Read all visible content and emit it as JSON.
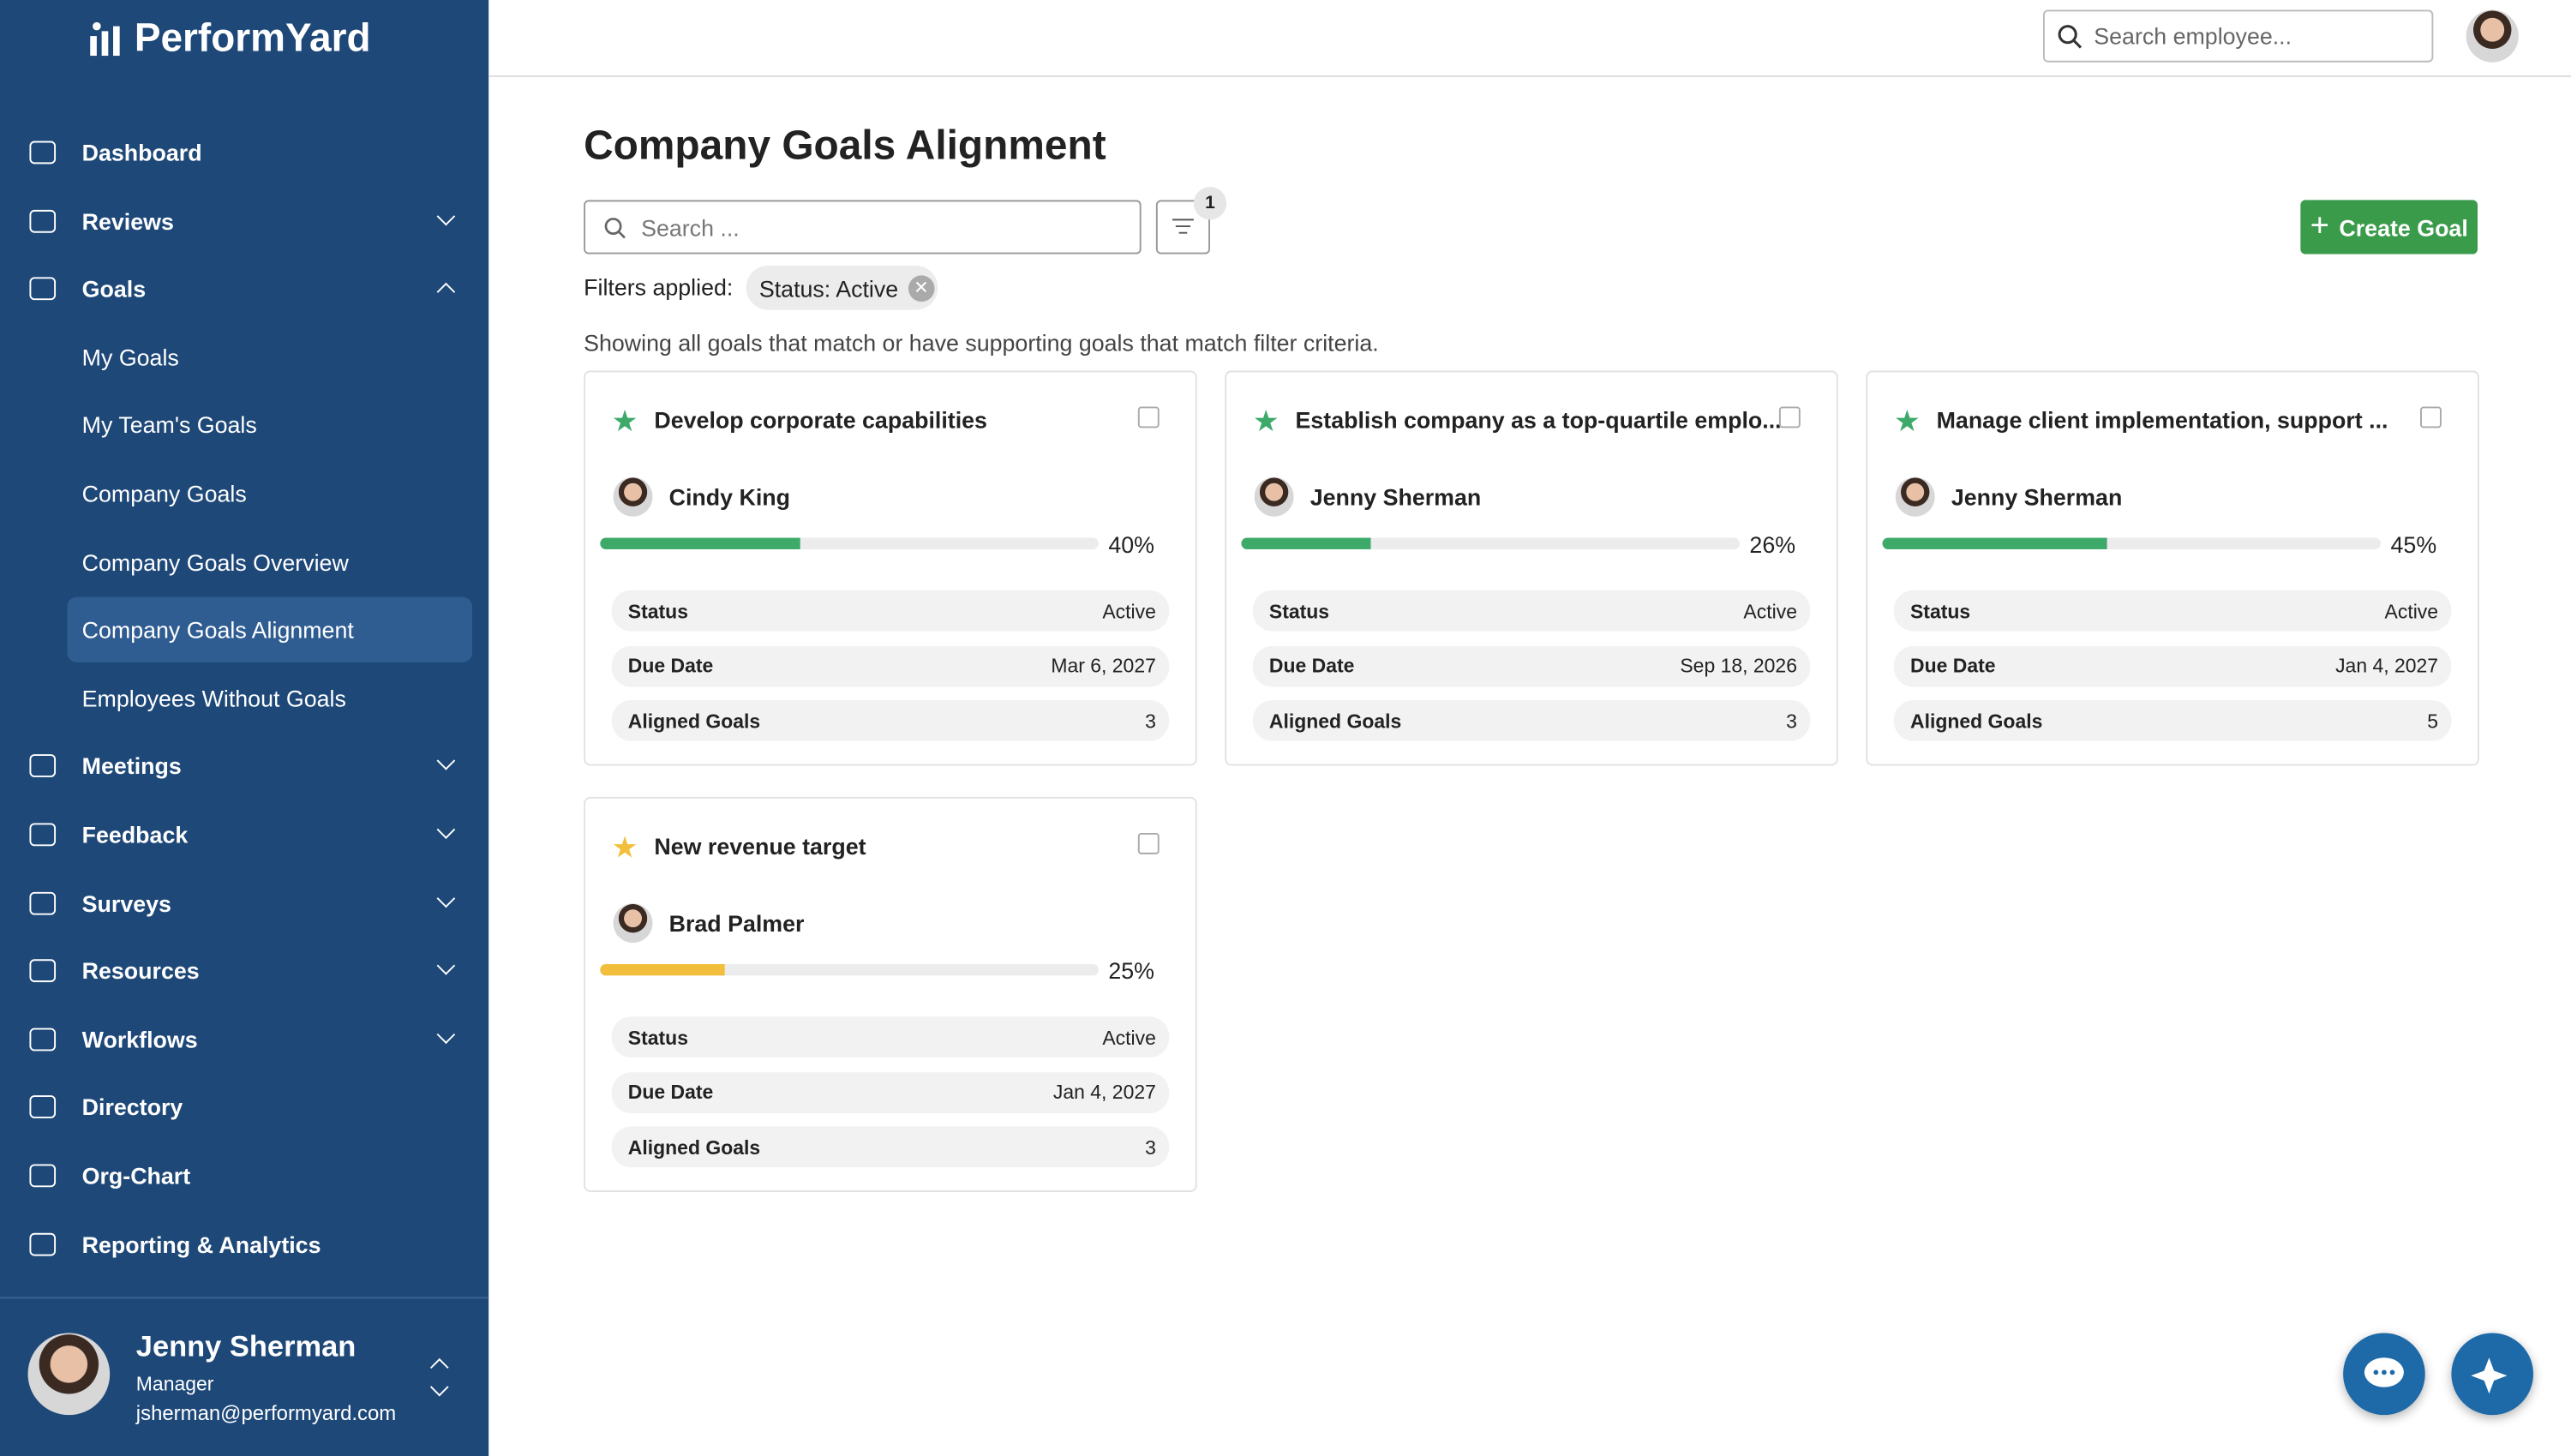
{
  "sidebar": {
    "logo": "PerformYard",
    "nav": [
      {
        "label": "Dashboard"
      },
      {
        "label": "Reviews",
        "chevron": "down"
      },
      {
        "label": "Goals",
        "chevron": "up",
        "children": [
          {
            "label": "My Goals"
          },
          {
            "label": "My Team's Goals"
          },
          {
            "label": "Company Goals"
          },
          {
            "label": "Company Goals Overview"
          },
          {
            "label": "Company Goals Alignment",
            "active": true
          },
          {
            "label": "Employees Without Goals"
          }
        ]
      },
      {
        "label": "Meetings",
        "chevron": "down"
      },
      {
        "label": "Feedback",
        "chevron": "down"
      },
      {
        "label": "Surveys",
        "chevron": "down"
      },
      {
        "label": "Resources",
        "chevron": "down"
      },
      {
        "label": "Workflows",
        "chevron": "down"
      },
      {
        "label": "Directory"
      },
      {
        "label": "Org-Chart"
      },
      {
        "label": "Reporting & Analytics"
      }
    ],
    "user": {
      "name": "Jenny Sherman",
      "role": "Manager",
      "email": "jsherman@performyard.com"
    }
  },
  "topbar": {
    "search_placeholder": "Search employee..."
  },
  "page": {
    "title": "Company Goals Alignment",
    "search_placeholder": "Search ...",
    "filter_count": 1,
    "create_button": "Create Goal",
    "filters_label": "Filters applied:",
    "filter_chip": "Status: Active",
    "note": "Showing all goals that match or have supporting goals that match filter criteria."
  },
  "goals": [
    {
      "title": "Develop corporate capabilities",
      "owner": "Cindy King",
      "progress": "40%",
      "color": "#3daa6a",
      "rows": [
        [
          "Status",
          "Active"
        ],
        [
          "Due Date",
          "Mar 6, 2027"
        ],
        [
          "Aligned Goals",
          3
        ]
      ]
    },
    {
      "title": "Establish company as a top-quartile emplo...",
      "owner": "Jenny Sherman",
      "progress": "26%",
      "color": "#3daa6a",
      "rows": [
        [
          "Status",
          "Active"
        ],
        [
          "Due Date",
          "Sep 18, 2026"
        ],
        [
          "Aligned Goals",
          3
        ]
      ]
    },
    {
      "title": "Manage client implementation, support ...",
      "owner": "Jenny Sherman",
      "progress": "45%",
      "color": "#3daa6a",
      "rows": [
        [
          "Status",
          "Active"
        ],
        [
          "Due Date",
          "Jan 4, 2027"
        ],
        [
          "Aligned Goals",
          5
        ]
      ]
    },
    {
      "title": "New revenue target",
      "owner": "Brad Palmer",
      "progress": "25%",
      "color": "#f2bf3c",
      "rows": [
        [
          "Status",
          "Active"
        ],
        [
          "Due Date",
          "Jan 4, 2027"
        ],
        [
          "Aligned Goals",
          3
        ]
      ]
    }
  ]
}
